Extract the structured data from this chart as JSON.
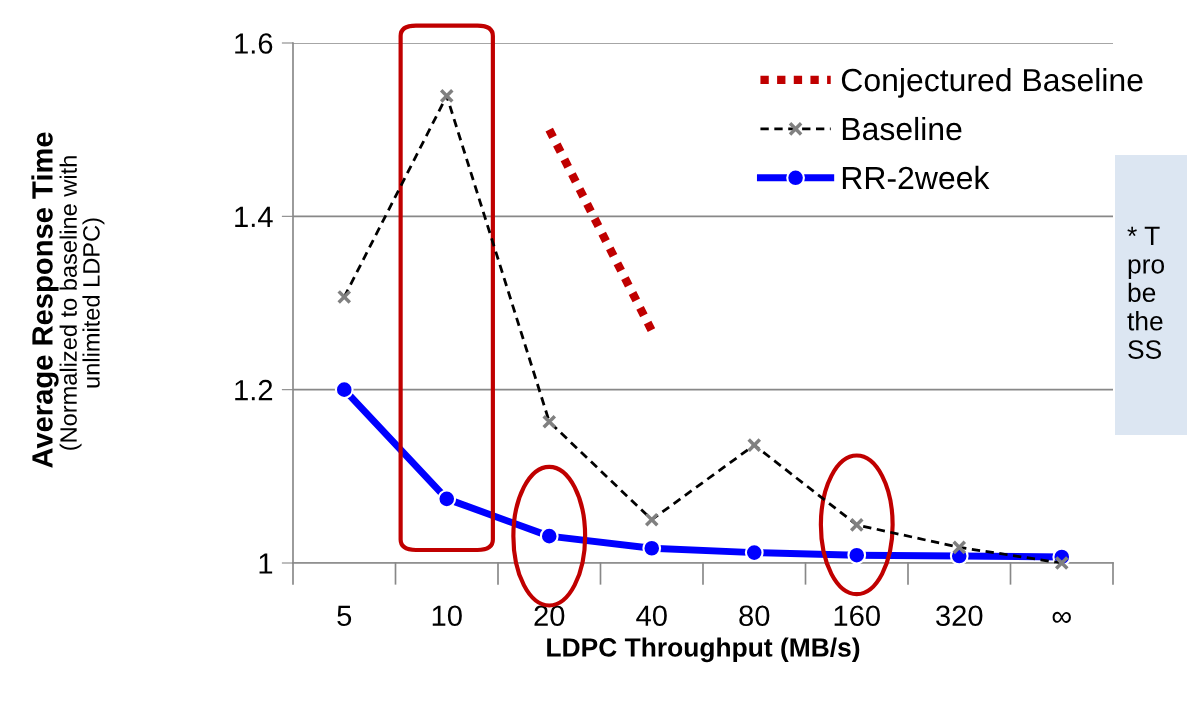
{
  "chart_data": {
    "type": "line",
    "xlabel": "LDPC Throughput (MB/s)",
    "categories": [
      "5",
      "10",
      "20",
      "40",
      "80",
      "160",
      "320",
      "∞"
    ],
    "ylim": [
      1,
      1.6
    ],
    "yticks": [
      1,
      1.2,
      1.4,
      1.6
    ],
    "grid": "y",
    "legend": "top right",
    "series": [
      {
        "name": "Conjectured Baseline",
        "color": "#c00000",
        "line_style": "dotted",
        "marker": "none",
        "values": [
          null,
          null,
          1.5,
          1.268,
          null,
          null,
          null,
          null
        ]
      },
      {
        "name": "Baseline",
        "color": "#000000",
        "line_style": "dashed",
        "marker": "cross",
        "values": [
          1.307,
          1.539,
          1.163,
          1.05,
          1.136,
          1.044,
          1.018,
          1.0
        ]
      },
      {
        "name": "RR-2week",
        "color": "#0000ff",
        "line_style": "solid",
        "marker": "circle",
        "values": [
          1.2,
          1.074,
          1.031,
          1.017,
          1.012,
          1.009,
          1.008,
          1.007
        ]
      }
    ],
    "annotations": [
      "Average Response Time",
      "(Normalized to baseline with\nunlimited LDPC)",
      "* T\npro\nbe\nthe\nSS"
    ]
  }
}
